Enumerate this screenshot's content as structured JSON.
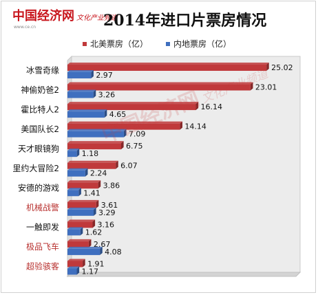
{
  "header": {
    "logo_main": "中国经济网",
    "logo_tag": "文化产业频道",
    "logo_url": "www.ce.cn",
    "title": "2014年进口片票房情况"
  },
  "watermark": {
    "main": "中国经济网",
    "tag": "文化产业频道"
  },
  "colors": {
    "north_america": "#c0393b",
    "mainland": "#3f6fbf",
    "highlight_label": "#b8312f",
    "normal_label": "#111111",
    "plot_bg": "#ececec"
  },
  "chart_data": {
    "type": "bar",
    "orientation": "horizontal",
    "title": "2014年进口片票房情况",
    "xlim": [
      0,
      27
    ],
    "grid": false,
    "legend_position": "top",
    "categories": [
      "冰雪奇缘",
      "神偷奶爸2",
      "霍比特人2",
      "美国队长2",
      "天才眼镜狗",
      "里约大冒险2",
      "安德的游戏",
      "机械战警",
      "一触即发",
      "极品飞车",
      "超验骇客"
    ],
    "highlighted_categories": [
      "机械战警",
      "极品飞车",
      "超验骇客"
    ],
    "series": [
      {
        "name": "北美票房（亿）",
        "color": "#c0393b",
        "values": [
          25.02,
          23.01,
          16.14,
          14.14,
          6.75,
          6.07,
          3.86,
          3.61,
          3.16,
          2.67,
          1.91
        ]
      },
      {
        "name": "内地票房（亿）",
        "color": "#3f6fbf",
        "values": [
          2.97,
          3.26,
          4.65,
          7.09,
          1.18,
          2.24,
          1.41,
          3.29,
          1.62,
          4.08,
          1.17
        ]
      }
    ]
  }
}
